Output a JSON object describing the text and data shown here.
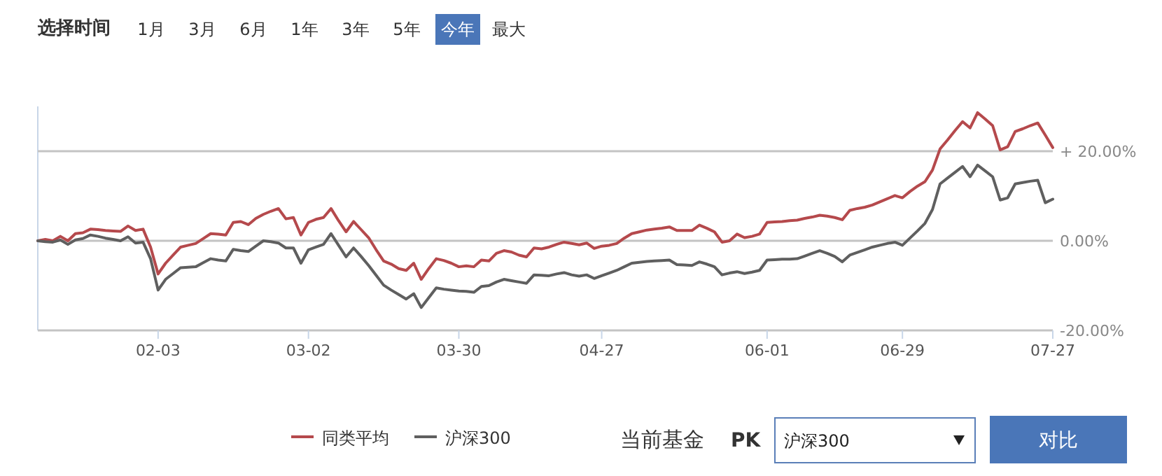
{
  "chart_data": {
    "type": "line",
    "categories": [
      null,
      null,
      null,
      null,
      null,
      null,
      null,
      null,
      null,
      null,
      null,
      null,
      null,
      null,
      null,
      null,
      "02-03",
      null,
      null,
      null,
      null,
      null,
      null,
      null,
      null,
      null,
      null,
      null,
      null,
      null,
      null,
      null,
      null,
      null,
      null,
      null,
      "03-02",
      null,
      null,
      null,
      null,
      null,
      null,
      null,
      null,
      null,
      null,
      null,
      null,
      null,
      null,
      null,
      null,
      null,
      null,
      null,
      "03-30",
      null,
      null,
      null,
      null,
      null,
      null,
      null,
      null,
      null,
      null,
      null,
      null,
      null,
      null,
      null,
      null,
      null,
      null,
      "04-27",
      null,
      null,
      null,
      null,
      null,
      null,
      null,
      null,
      null,
      null,
      null,
      null,
      null,
      null,
      null,
      null,
      null,
      null,
      null,
      null,
      null,
      "06-01",
      null,
      null,
      null,
      null,
      null,
      null,
      null,
      null,
      null,
      null,
      null,
      null,
      null,
      null,
      null,
      null,
      null,
      "06-29",
      null,
      null,
      null,
      null,
      null,
      null,
      null,
      null,
      null,
      null,
      null,
      null,
      null,
      null,
      null,
      null,
      null,
      null,
      null,
      "07-27"
    ],
    "ylim": [
      -20,
      30
    ],
    "yticks": [
      {
        "value": -20,
        "label": "-20.00%"
      },
      {
        "value": 0,
        "label": "0.00%"
      },
      {
        "value": 20,
        "label": "+ 20.00%"
      }
    ],
    "grid": "y",
    "legend": "bottom",
    "line_style": "solid",
    "marker": "none",
    "series": [
      {
        "name": "同类平均",
        "color": "#b5494c",
        "values": [
          0,
          0.3,
          0,
          1.0,
          0,
          1.6,
          1.8,
          2.6,
          2.5,
          2.3,
          2.2,
          2.1,
          3.3,
          2.3,
          2.6,
          -1.4,
          -7.4,
          -5,
          -3.2,
          -1.4,
          -1.0,
          -0.6,
          0.5,
          1.6,
          1.5,
          1.3,
          4.1,
          4.3,
          3.6,
          5.0,
          5.9,
          6.6,
          7.2,
          4.9,
          5.2,
          1.3,
          4.1,
          4.8,
          5.2,
          7.2,
          4.5,
          2,
          4.3,
          2.5,
          0.7,
          -2,
          -4.5,
          -5.2,
          -6.2,
          -6.6,
          -5,
          -8.6,
          -6.2,
          -4,
          -4.4,
          -5,
          -5.8,
          -5.6,
          -5.8,
          -4.3,
          -4.5,
          -2.8,
          -2.2,
          -2.5,
          -3.2,
          -3.6,
          -1.6,
          -1.8,
          -1.4,
          -0.8,
          -0.3,
          -0.6,
          -0.9,
          -0.5,
          -1.7,
          -1.2,
          -1.0,
          -0.6,
          0.6,
          1.6,
          2.0,
          2.4,
          2.6,
          2.8,
          3.1,
          2.3,
          2.3,
          2.3,
          3.5,
          2.8,
          2,
          -0.3,
          0,
          1.5,
          0.7,
          1.0,
          1.5,
          4.1,
          4.2,
          4.3,
          4.5,
          4.6,
          5.0,
          5.3,
          5.7,
          5.5,
          5.2,
          4.7,
          6.8,
          7.2,
          7.5,
          8,
          8.7,
          9.4,
          10.1,
          9.6,
          11,
          12.2,
          13.2,
          15.8,
          20.5,
          22.5,
          24.6,
          26.6,
          25.2,
          28.6,
          27.2,
          25.7,
          20.3,
          21,
          24.4,
          25.0,
          25.7,
          26.3,
          23.6,
          20.8
        ]
      },
      {
        "name": "沪深300",
        "color": "#5f5f5f",
        "values": [
          0,
          -0.2,
          -0.3,
          0.2,
          -0.8,
          0.2,
          0.5,
          1.3,
          1.0,
          0.6,
          0.3,
          0,
          0.9,
          -0.5,
          -0.3,
          -4,
          -11,
          -8.6,
          -7.3,
          -6,
          -5.9,
          -5.8,
          -4.9,
          -4,
          -4.3,
          -4.5,
          -1.9,
          -2.2,
          -2.4,
          -1.2,
          0,
          -0.2,
          -0.5,
          -1.6,
          -1.6,
          -5,
          -2,
          -1.4,
          -0.8,
          1.6,
          -1.0,
          -3.6,
          -1.6,
          -3.5,
          -5.5,
          -7.7,
          -9.9,
          -11,
          -12,
          -13,
          -11.8,
          -14.9,
          -12.7,
          -10.5,
          -10.8,
          -11,
          -11.2,
          -11.3,
          -11.5,
          -10.2,
          -10.0,
          -9.2,
          -8.6,
          -8.9,
          -9.2,
          -9.5,
          -7.6,
          -7.7,
          -7.8,
          -7.4,
          -7.1,
          -7.6,
          -7.9,
          -7.6,
          -8.4,
          -7.8,
          -7.2,
          -6.6,
          -5.8,
          -5,
          -4.8,
          -4.6,
          -4.5,
          -4.4,
          -4.3,
          -5.3,
          -5.4,
          -5.5,
          -4.7,
          -5.2,
          -5.8,
          -7.6,
          -7.2,
          -6.9,
          -7.3,
          -7.0,
          -6.6,
          -4.3,
          -4.2,
          -4.1,
          -4.1,
          -4,
          -3.4,
          -2.8,
          -2.2,
          -2.8,
          -3.5,
          -4.7,
          -3.2,
          -2.6,
          -2.0,
          -1.4,
          -1.0,
          -0.6,
          -0.3,
          -1,
          0.6,
          2.2,
          3.9,
          7,
          12.7,
          14,
          15.3,
          16.6,
          14.3,
          16.9,
          15.6,
          14.3,
          9.1,
          9.6,
          12.7,
          13.0,
          13.3,
          13.5,
          8.5,
          9.3
        ]
      }
    ],
    "annotations": [
      "选择时间",
      "1月",
      "3月",
      "6月",
      "1年",
      "3年",
      "5年",
      "今年",
      "最大",
      "当前基金",
      "PK",
      "沪深300",
      "对比"
    ]
  }
}
